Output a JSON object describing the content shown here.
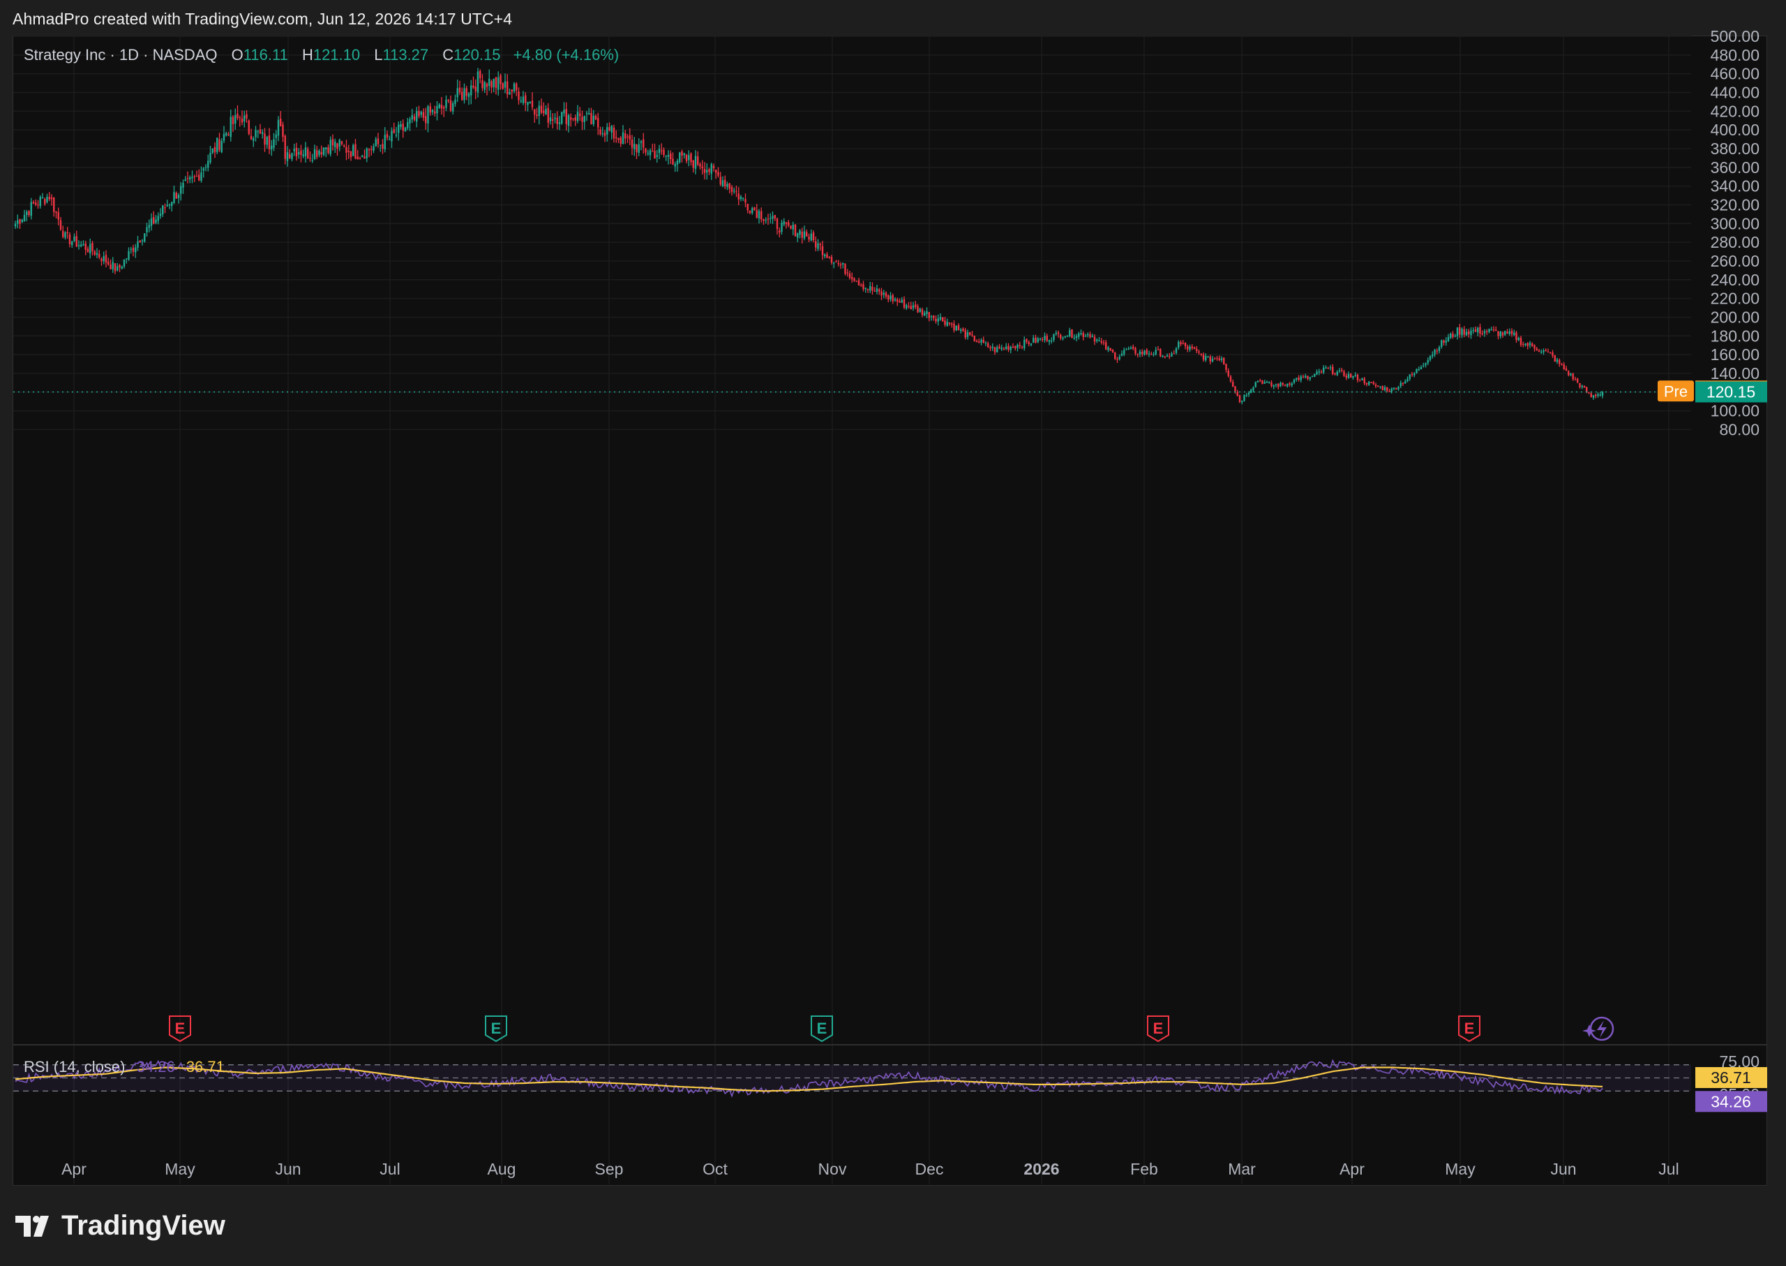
{
  "credit": "AhmadPro created with TradingView.com, Jun 12, 2026 14:17 UTC+4",
  "brand": "TradingView",
  "legend": {
    "title": "Strategy Inc · 1D · NASDAQ",
    "open_label": "O",
    "open": "116.11",
    "high_label": "H",
    "high": "121.10",
    "low_label": "L",
    "low": "113.27",
    "close_label": "C",
    "close": "120.15",
    "change": "+4.80 (+4.16%)"
  },
  "rsi_legend": {
    "title": "RSI (14, close)",
    "rsi": "34.26",
    "ma": "36.71"
  },
  "colors": {
    "up": "#22ab94",
    "down": "#f23645",
    "rsi": "#7e57c2",
    "rsi_ma": "#f7c948",
    "pre_badge": "#f7931a",
    "last_badge": "#089981",
    "grid": "#1c1c1c",
    "bg": "#0f0f0f"
  },
  "badges": {
    "pre_label": "Pre",
    "pre_price": "121.09",
    "last_price": "120.15",
    "rsi_ma_value": "36.71",
    "rsi_value": "34.26"
  },
  "earnings_marker_label": "E",
  "chart_data": [
    {
      "type": "candlestick",
      "title": "Strategy Inc · 1D · NASDAQ",
      "ylim": [
        70,
        500
      ],
      "y_ticks": [
        "500.00",
        "480.00",
        "460.00",
        "440.00",
        "420.00",
        "400.00",
        "380.00",
        "360.00",
        "340.00",
        "320.00",
        "300.00",
        "280.00",
        "260.00",
        "240.00",
        "220.00",
        "200.00",
        "180.00",
        "160.00",
        "140.00",
        "120.00",
        "100.00",
        "80.00"
      ],
      "y_tick_values": [
        500,
        480,
        460,
        440,
        420,
        400,
        380,
        360,
        340,
        320,
        300,
        280,
        260,
        240,
        220,
        200,
        180,
        160,
        140,
        120,
        100,
        80
      ],
      "x_ticks": [
        "Apr",
        "May",
        "Jun",
        "Jul",
        "Aug",
        "Sep",
        "Oct",
        "Nov",
        "Dec",
        "2026",
        "Feb",
        "Mar",
        "Apr",
        "May",
        "Jun",
        "Jul"
      ],
      "close_path": {
        "x": [
          0,
          8,
          15,
          22,
          35,
          45,
          55,
          62,
          70,
          80,
          88,
          95,
          100,
          103,
          107,
          112,
          116,
          119,
          123,
          130,
          139,
          152,
          165,
          176,
          190,
          205,
          222,
          234,
          249,
          264,
          276,
          290,
          302,
          313,
          319,
          323,
          329,
          337,
          348,
          357,
          364,
          375,
          391,
          411,
          420,
          432,
          445,
          462,
          474,
          482,
          486,
          490,
          496,
          505,
          509,
          513,
          519,
          526,
          532,
          540,
          548,
          554,
          560,
          566,
          571,
          578,
          584,
          592,
          599,
          607,
          617,
          628,
          636,
          650,
          661,
          665,
          670,
          677,
          687,
          695,
          700
        ],
        "y": [
          300,
          320,
          330,
          285,
          270,
          250,
          285,
          305,
          330,
          350,
          380,
          405,
          415,
          400,
          395,
          385,
          410,
          375,
          380,
          375,
          385,
          375,
          390,
          410,
          425,
          455,
          440,
          415,
          415,
          395,
          380,
          370,
          365,
          345,
          330,
          320,
          310,
          297,
          290,
          270,
          255,
          232,
          215,
          195,
          180,
          165,
          172,
          182,
          182,
          165,
          157,
          165,
          162,
          162,
          155,
          172,
          165,
          155,
          157,
          110,
          133,
          127,
          128,
          135,
          135,
          145,
          140,
          135,
          127,
          122,
          140,
          170,
          185,
          185,
          180,
          172,
          168,
          160,
          135,
          115,
          120.15
        ]
      },
      "last_close": 120.15,
      "premarket": 121.09,
      "earnings_markers_months": [
        "late Apr",
        "late Jul",
        "late Oct",
        "early Feb",
        "early May"
      ],
      "earnings_markers_colors": [
        "down",
        "up",
        "up",
        "down",
        "down"
      ]
    },
    {
      "type": "line",
      "title": "RSI (14, close)",
      "ylim": [
        22,
        78
      ],
      "y_ticks": [
        "75.00",
        "25.00"
      ],
      "y_tick_values": [
        75,
        25
      ],
      "band": [
        30,
        70
      ],
      "series": [
        {
          "name": "RSI",
          "values_approx": [
            45,
            55,
            52,
            60,
            68,
            72,
            62,
            55,
            58,
            64,
            70,
            66,
            52,
            48,
            40,
            38,
            42,
            46,
            50,
            44,
            38,
            36,
            34,
            32,
            28,
            30,
            34,
            40,
            46,
            50,
            54,
            46,
            42,
            38,
            36,
            40,
            42,
            44,
            48,
            44,
            36,
            38,
            52,
            68,
            72,
            64,
            62,
            60,
            54,
            44,
            38,
            32,
            30,
            34.26
          ]
        },
        {
          "name": "MA",
          "values_approx": [
            48,
            52,
            54,
            56,
            62,
            66,
            64,
            60,
            57,
            58,
            62,
            64,
            58,
            52,
            46,
            42,
            41,
            42,
            44,
            44,
            42,
            40,
            37,
            35,
            32,
            30,
            31,
            33,
            37,
            40,
            44,
            46,
            44,
            42,
            40,
            40,
            41,
            42,
            44,
            44,
            42,
            40,
            42,
            50,
            60,
            66,
            66,
            64,
            60,
            55,
            48,
            42,
            39,
            36.71
          ]
        }
      ]
    }
  ]
}
